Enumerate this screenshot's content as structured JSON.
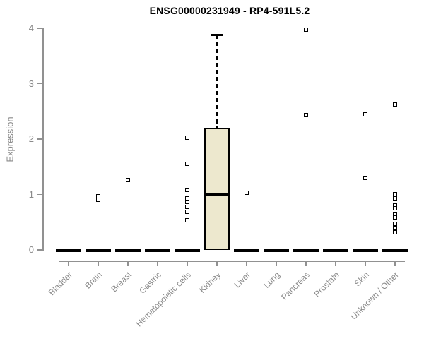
{
  "chart_data": {
    "type": "boxplot",
    "title": "ENSG00000231949 - RP4-591L5.2",
    "xlabel": "",
    "ylabel": "Expression",
    "ylim": [
      0,
      4
    ],
    "yticks": [
      0,
      1,
      2,
      3,
      4
    ],
    "grid": false,
    "legend": "none",
    "box_fill_color": "#EDE8CE",
    "box_border_color": "#000000",
    "axis_color": "#919191",
    "text_color": "#8a8a8a",
    "outlier_marker": "open-square",
    "categories": [
      "Bladder",
      "Brain",
      "Breast",
      "Gastric",
      "Hematopoietic cells",
      "Kidney",
      "Liver",
      "Lung",
      "Pancreas",
      "Prostate",
      "Skin",
      "Unknown / Other"
    ],
    "boxes": [
      {
        "category": "Bladder",
        "q1": 0,
        "median": 0,
        "q3": 0,
        "whisker_low": 0,
        "whisker_high": 0,
        "outliers": []
      },
      {
        "category": "Brain",
        "q1": 0,
        "median": 0,
        "q3": 0,
        "whisker_low": 0,
        "whisker_high": 0,
        "outliers": [
          0.97,
          0.9
        ]
      },
      {
        "category": "Breast",
        "q1": 0,
        "median": 0,
        "q3": 0,
        "whisker_low": 0,
        "whisker_high": 0,
        "outliers": [
          1.26
        ]
      },
      {
        "category": "Gastric",
        "q1": 0,
        "median": 0,
        "q3": 0,
        "whisker_low": 0,
        "whisker_high": 0,
        "outliers": []
      },
      {
        "category": "Hematopoietic cells",
        "q1": 0,
        "median": 0,
        "q3": 0,
        "whisker_low": 0,
        "whisker_high": 0,
        "outliers": [
          2.03,
          1.55,
          1.08,
          0.93,
          0.87,
          0.78,
          0.69,
          0.54
        ]
      },
      {
        "category": "Kidney",
        "q1": 0,
        "median": 1.0,
        "q3": 2.2,
        "whisker_low": 0,
        "whisker_high": 3.88,
        "outliers": []
      },
      {
        "category": "Liver",
        "q1": 0,
        "median": 0,
        "q3": 0,
        "whisker_low": 0,
        "whisker_high": 0,
        "outliers": [
          1.03
        ]
      },
      {
        "category": "Lung",
        "q1": 0,
        "median": 0,
        "q3": 0,
        "whisker_low": 0,
        "whisker_high": 0,
        "outliers": []
      },
      {
        "category": "Pancreas",
        "q1": 0,
        "median": 0,
        "q3": 0,
        "whisker_low": 0,
        "whisker_high": 0,
        "outliers": [
          3.97,
          2.43
        ]
      },
      {
        "category": "Prostate",
        "q1": 0,
        "median": 0,
        "q3": 0,
        "whisker_low": 0,
        "whisker_high": 0,
        "outliers": []
      },
      {
        "category": "Skin",
        "q1": 0,
        "median": 0,
        "q3": 0,
        "whisker_low": 0,
        "whisker_high": 0,
        "outliers": [
          2.45,
          1.3
        ]
      },
      {
        "category": "Unknown / Other",
        "q1": 0,
        "median": 0,
        "q3": 0,
        "whisker_low": 0,
        "whisker_high": 0,
        "outliers": [
          2.62,
          1.01,
          0.93,
          0.8,
          0.75,
          0.65,
          0.59,
          0.47,
          0.39,
          0.32
        ]
      }
    ]
  }
}
